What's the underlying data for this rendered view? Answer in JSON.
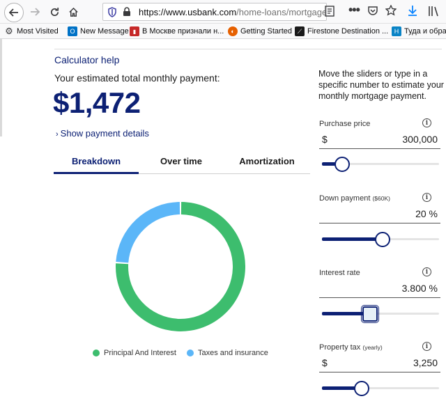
{
  "browser": {
    "url_main": "https://www.usbank.com",
    "url_rest": "/home-loans/mortgage/",
    "bookmarks": [
      {
        "label": "Most Visited",
        "icon": "gear-icon"
      },
      {
        "label": "New Message",
        "icon": "outlook-icon"
      },
      {
        "label": "В Москве признали н...",
        "icon": "news-icon"
      },
      {
        "label": "Getting Started",
        "icon": "firefox-icon"
      },
      {
        "label": "Firestone Destination ...",
        "icon": "firestone-icon"
      },
      {
        "label": "Туда и обрат",
        "icon": "h-icon"
      }
    ]
  },
  "calculator": {
    "help_link": "Calculator help",
    "estimate_label": "Your estimated total monthly payment:",
    "amount": "$1,472",
    "details_link": "Show payment details",
    "tabs": [
      "Breakdown",
      "Over time",
      "Amortization"
    ],
    "active_tab": "Breakdown"
  },
  "chart_data": {
    "type": "pie",
    "donut": true,
    "series": [
      {
        "name": "Principal And Interest",
        "value": 76,
        "color": "#3dbd6e"
      },
      {
        "name": "Taxes and insurance",
        "value": 24,
        "color": "#5bb6f8"
      }
    ]
  },
  "sliders_panel": {
    "intro": "Move the sliders or type in a specific number to estimate your monthly mortgage payment.",
    "fields": [
      {
        "label": "Purchase price",
        "note": "",
        "prefix": "$",
        "value": "300,000",
        "suffix": "",
        "slider_level": 0.17
      },
      {
        "label": "Down payment",
        "note": "($60K)",
        "prefix": "",
        "value": "20",
        "suffix": "%",
        "slider_level": 0.52
      },
      {
        "label": "Interest rate",
        "note": "",
        "prefix": "",
        "value": "3.800",
        "suffix": "%",
        "slider_level": 0.41
      },
      {
        "label": "Property tax",
        "note": "(yearly)",
        "prefix": "$",
        "value": "3,250",
        "suffix": "",
        "slider_level": 0.34
      }
    ]
  },
  "colors": {
    "brand_navy": "#0c2074",
    "principal_green": "#3dbd6e",
    "taxes_blue": "#5bb6f8"
  }
}
